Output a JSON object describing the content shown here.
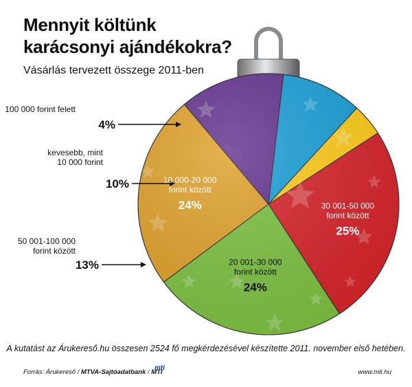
{
  "title": "Mennyit költünk karácsonyi ajándékokra?",
  "subtitle": "Vásárlás tervezett összege 2011-ben",
  "footnote": "A kutatást az Árukereső.hu összesen 2524 fő megkérdezésével készítette 2011. november első hetében.",
  "source": {
    "prefix": "Forrás: Árukereső / ",
    "bold": "MTVA-Sajtóadatbank",
    "sep": " / ",
    "mti": "MTI"
  },
  "logo": "mti",
  "website": "www.mti.hu",
  "chart_data": {
    "type": "pie",
    "unit": "%",
    "slices": [
      {
        "label_lines": [
          "30 001-50 000",
          "forint között"
        ],
        "value": 25,
        "value_label": "25%",
        "color": "#d8252b",
        "label_inside": true
      },
      {
        "label_lines": [
          "20 001-30 000",
          "forint között"
        ],
        "value": 24,
        "value_label": "24%",
        "color": "#7ec242",
        "label_inside": true
      },
      {
        "label_lines": [
          "10 000-20 000",
          "forint között"
        ],
        "value": 24,
        "value_label": "24%",
        "color": "#e0a12a",
        "label_inside": true
      },
      {
        "label_lines": [
          "50 001-100 000",
          "forint között"
        ],
        "value": 13,
        "value_label": "13%",
        "color": "#63338f",
        "label_inside": false
      },
      {
        "label_lines": [
          "kevesebb, mint",
          "10 000 forint"
        ],
        "value": 10,
        "value_label": "10%",
        "color": "#1aa0d8",
        "label_inside": false
      },
      {
        "label_lines": [
          "100 000 forint felett"
        ],
        "value": 4,
        "value_label": "4%",
        "color": "#ffcc1a",
        "label_inside": false
      }
    ]
  }
}
